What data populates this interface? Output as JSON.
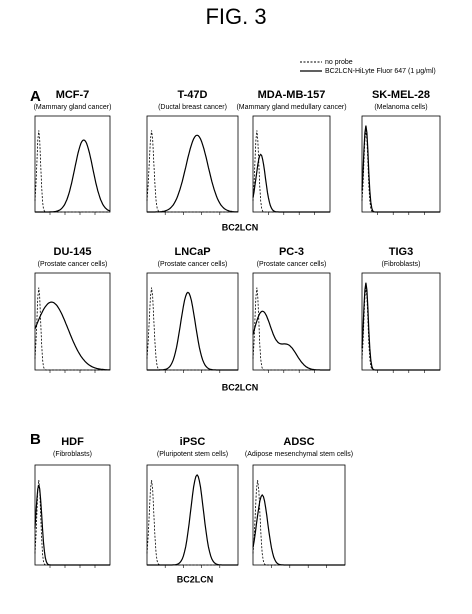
{
  "figure_title": "FIG. 3",
  "legend": [
    "no probe",
    "BC2LCN-HiLyte Fluor 647 (1 μg/ml)"
  ],
  "sections": [
    {
      "label": "A",
      "rows": [
        {
          "panels": [
            {
              "name": "MCF-7",
              "subtitle": "(Mammary gland cancer)"
            },
            {
              "name": "T-47D",
              "subtitle": "(Ductal breast cancer)"
            },
            {
              "name": "MDA-MB-157",
              "subtitle": "(Mammary gland medullary cancer)"
            },
            {
              "name": "SK-MEL-28",
              "subtitle": "(Melanoma cells)"
            }
          ],
          "x_label": "BC2LCN"
        },
        {
          "panels": [
            {
              "name": "DU-145",
              "subtitle": "(Prostate cancer cells)"
            },
            {
              "name": "LNCaP",
              "subtitle": "(Prostate cancer cells)"
            },
            {
              "name": "PC-3",
              "subtitle": "(Prostate cancer cells)"
            },
            {
              "name": "TIG3",
              "subtitle": "(Fibroblasts)"
            }
          ],
          "x_label": "BC2LCN"
        }
      ]
    },
    {
      "label": "B",
      "rows": [
        {
          "panels": [
            {
              "name": "HDF",
              "subtitle": "(Fibroblasts)"
            },
            {
              "name": "iPSC",
              "subtitle": "(Pluripotent stem cells)"
            },
            {
              "name": "ADSC",
              "subtitle": "(Adipose mesenchymal stem cells)"
            }
          ],
          "x_label": "BC2LCN"
        }
      ]
    }
  ]
}
